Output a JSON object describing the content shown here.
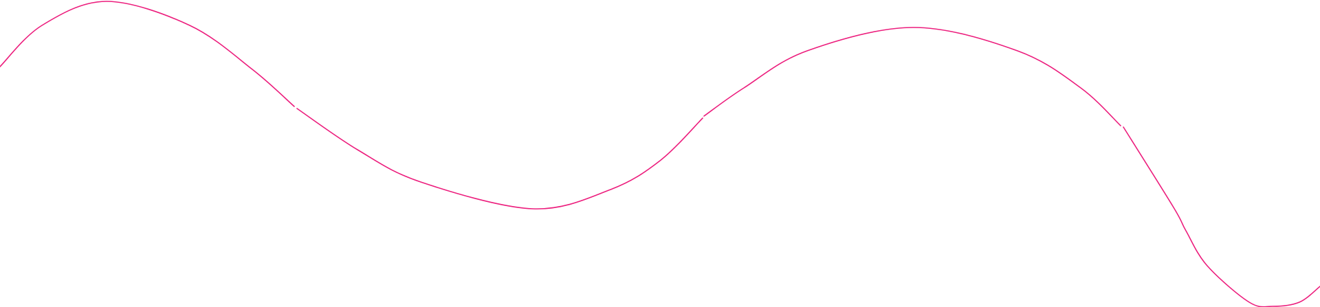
{
  "decoration": {
    "type": "wavy-line",
    "segment_count": 4,
    "stroke_color": "#ec1c7c",
    "background_color": "#ffffff"
  }
}
